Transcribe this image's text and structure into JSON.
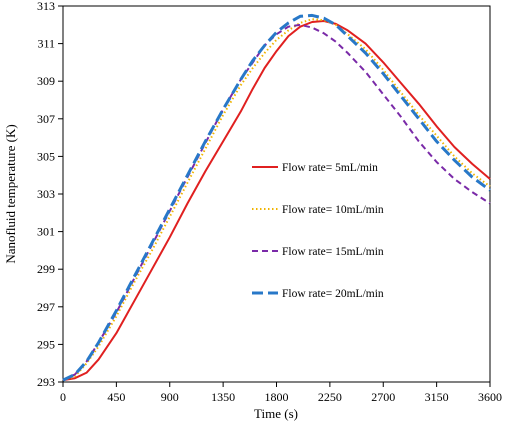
{
  "chart_data": {
    "type": "line",
    "xlabel": "Time (s)",
    "ylabel": "Nanofluid temperature (K)",
    "xlim": [
      0,
      3600
    ],
    "ylim": [
      293,
      313
    ],
    "x_ticks": [
      0,
      450,
      900,
      1350,
      1800,
      2250,
      2700,
      3150,
      3600
    ],
    "y_ticks": [
      293,
      295,
      297,
      299,
      301,
      303,
      305,
      307,
      309,
      311,
      313
    ],
    "grid": false,
    "legend_position": "right-middle",
    "series": [
      {
        "name": "Flow rate= 5mL/min",
        "color": "#e02020",
        "style": "solid",
        "x": [
          0,
          100,
          200,
          300,
          450,
          600,
          750,
          900,
          1050,
          1200,
          1350,
          1500,
          1600,
          1700,
          1800,
          1900,
          2000,
          2100,
          2200,
          2300,
          2400,
          2550,
          2700,
          2850,
          3000,
          3150,
          3300,
          3450,
          3600
        ],
        "y": [
          293.1,
          293.2,
          293.5,
          294.2,
          295.6,
          297.3,
          299.0,
          300.7,
          302.5,
          304.2,
          305.8,
          307.4,
          308.6,
          309.7,
          310.6,
          311.4,
          311.9,
          312.15,
          312.2,
          312.05,
          311.7,
          311.0,
          310.0,
          308.9,
          307.8,
          306.6,
          305.5,
          304.6,
          303.8
        ]
      },
      {
        "name": "Flow rate= 10mL/min",
        "color": "#f0b400",
        "style": "dotted",
        "x": [
          0,
          100,
          200,
          300,
          450,
          600,
          750,
          900,
          1050,
          1200,
          1350,
          1500,
          1600,
          1700,
          1800,
          1900,
          2000,
          2100,
          2200,
          2300,
          2400,
          2550,
          2700,
          2850,
          3000,
          3150,
          3300,
          3450,
          3600
        ],
        "y": [
          293.1,
          293.3,
          294.0,
          294.9,
          296.5,
          298.3,
          300.0,
          301.8,
          303.6,
          305.4,
          307.2,
          308.8,
          309.7,
          310.5,
          311.2,
          311.7,
          312.1,
          312.3,
          312.25,
          312.0,
          311.5,
          310.7,
          309.6,
          308.4,
          307.2,
          306.1,
          305.0,
          304.1,
          303.4
        ]
      },
      {
        "name": "Flow rate= 15mL/min",
        "color": "#7a2aa8",
        "style": "dashed",
        "x": [
          0,
          100,
          200,
          300,
          450,
          600,
          750,
          900,
          1050,
          1200,
          1350,
          1500,
          1600,
          1700,
          1800,
          1900,
          2000,
          2100,
          2200,
          2300,
          2400,
          2550,
          2700,
          2850,
          3000,
          3150,
          3300,
          3450,
          3600
        ],
        "y": [
          293.1,
          293.4,
          294.1,
          295.1,
          296.7,
          298.5,
          300.3,
          302.1,
          303.9,
          305.7,
          307.5,
          309.1,
          310.0,
          310.9,
          311.5,
          311.9,
          312.0,
          311.85,
          311.55,
          311.1,
          310.5,
          309.5,
          308.3,
          307.1,
          305.8,
          304.7,
          303.8,
          303.1,
          302.5
        ]
      },
      {
        "name": "Flow rate= 20mL/min",
        "color": "#2878c8",
        "style": "longdash",
        "x": [
          0,
          100,
          200,
          300,
          450,
          600,
          750,
          900,
          1050,
          1200,
          1350,
          1500,
          1600,
          1700,
          1800,
          1900,
          2000,
          2100,
          2200,
          2300,
          2400,
          2550,
          2700,
          2850,
          3000,
          3150,
          3300,
          3450,
          3600
        ],
        "y": [
          293.1,
          293.4,
          294.1,
          295.1,
          296.8,
          298.6,
          300.4,
          302.2,
          304.0,
          305.8,
          307.5,
          309.1,
          310.1,
          310.9,
          311.6,
          312.1,
          312.45,
          312.5,
          312.35,
          312.0,
          311.4,
          310.5,
          309.4,
          308.2,
          307.0,
          305.8,
          304.8,
          303.9,
          303.2
        ]
      }
    ]
  }
}
